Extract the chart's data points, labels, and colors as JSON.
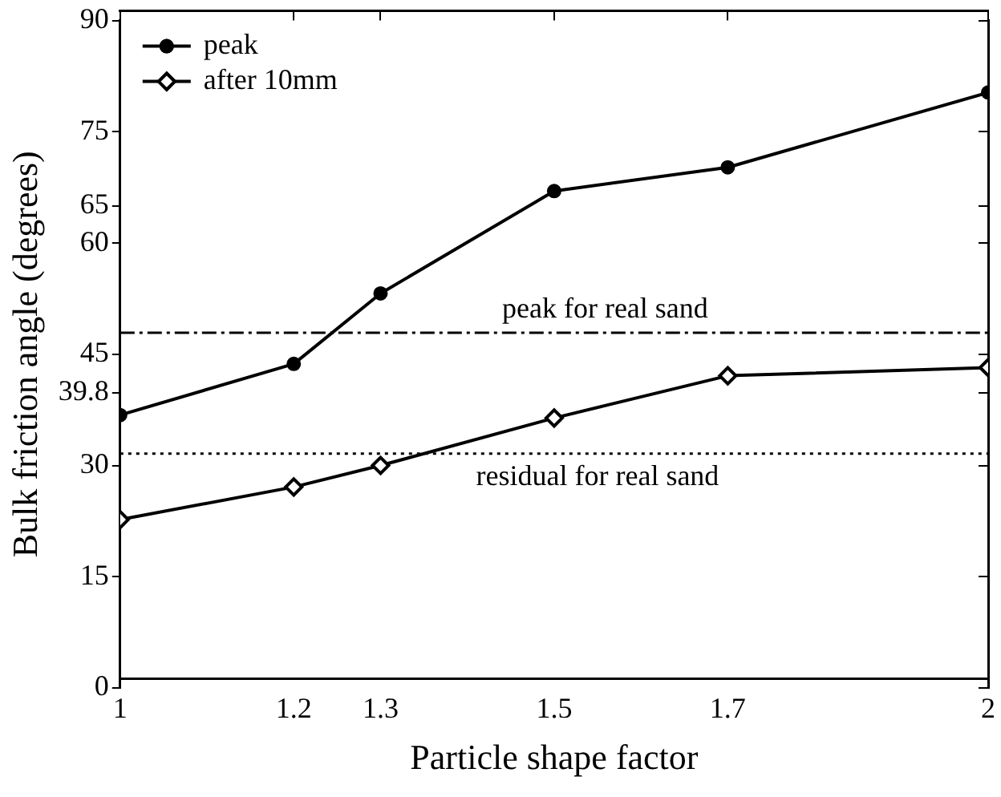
{
  "chart_data": {
    "type": "line",
    "xlabel": "Particle shape factor",
    "ylabel": "Bulk friction angle (degrees)",
    "x": [
      1,
      1.2,
      1.3,
      1.5,
      1.7,
      2
    ],
    "series": [
      {
        "name": "peak",
        "color": "#000000",
        "marker": "circle",
        "values": [
          36.8,
          43.7,
          53.2,
          67,
          70.2,
          80.3
        ]
      },
      {
        "name": "after 10mm",
        "color": "#000000",
        "marker": "diamond",
        "values": [
          22.7,
          27.1,
          30,
          36.4,
          42.1,
          43.2
        ]
      }
    ],
    "xlim": [
      1,
      2
    ],
    "xticks": [
      1,
      1.2,
      1.3,
      1.5,
      1.7,
      2
    ],
    "ylim": [
      0,
      90
    ],
    "yticks": [
      0,
      15,
      30,
      39.8,
      45,
      60,
      65,
      75,
      90
    ],
    "ref_lines": [
      {
        "axis": "y",
        "value": 47.9,
        "label": "peak for real sand",
        "line_style": "dashed",
        "color": "#000000"
      },
      {
        "axis": "y",
        "value": 31.6,
        "label": "residual for real sand",
        "line_style": "dotted",
        "color": "#000000"
      }
    ],
    "grid": false,
    "legend": "top left",
    "line_style": "solid"
  }
}
